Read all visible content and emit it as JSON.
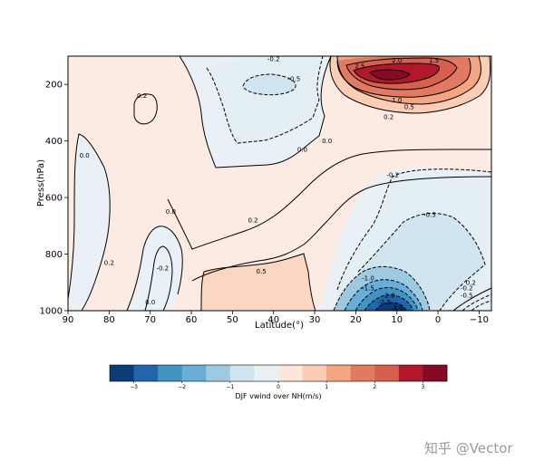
{
  "chart_data": {
    "type": "contour",
    "xlabel": "Latitude(°)",
    "ylabel": "Press(hPa)",
    "x_ticks": [
      "90",
      "80",
      "70",
      "60",
      "50",
      "40",
      "30",
      "20",
      "10",
      "0",
      "−10"
    ],
    "x_tick_values": [
      90,
      80,
      70,
      60,
      50,
      40,
      30,
      20,
      10,
      0,
      -10
    ],
    "y_ticks": [
      "200",
      "400",
      "600",
      "800",
      "1000"
    ],
    "y_tick_values": [
      200,
      400,
      600,
      800,
      1000
    ],
    "xlim": [
      90,
      -13
    ],
    "ylim": [
      1000,
      100
    ],
    "colorbar": {
      "label": "DJF vwind over NH(m/s)",
      "range": [
        -3.5,
        3.5
      ],
      "ticks": [
        "−3",
        "−2",
        "−1",
        "0",
        "1",
        "2",
        "3"
      ],
      "tick_values": [
        -3,
        -2,
        -1,
        0,
        1,
        2,
        3
      ],
      "colors": [
        "#0b3c77",
        "#2166ac",
        "#4393c3",
        "#6aadd6",
        "#9ecae1",
        "#d1e5f0",
        "#e9f1f6",
        "#fbe6dc",
        "#fbcdb4",
        "#f4a582",
        "#e27a61",
        "#d6604d",
        "#b2182b",
        "#850a27"
      ]
    },
    "contour_labels": [
      {
        "text": "-0.2",
        "lat": 40,
        "p": 110
      },
      {
        "text": "-0.5",
        "lat": 35,
        "p": 180
      },
      {
        "text": "0.2",
        "lat": 72,
        "p": 240
      },
      {
        "text": "2.0",
        "lat": 10,
        "p": 115
      },
      {
        "text": "1.5",
        "lat": 1,
        "p": 115
      },
      {
        "text": "2.5",
        "lat": 19,
        "p": 135
      },
      {
        "text": "1.0",
        "lat": 10,
        "p": 255
      },
      {
        "text": "0.5",
        "lat": 7,
        "p": 280
      },
      {
        "text": "0.2",
        "lat": 12,
        "p": 315
      },
      {
        "text": "0.0",
        "lat": 86,
        "p": 450
      },
      {
        "text": "0.0",
        "lat": 33,
        "p": 430
      },
      {
        "text": "0.0",
        "lat": 27,
        "p": 400
      },
      {
        "text": "-0.2",
        "lat": 11,
        "p": 520
      },
      {
        "text": "-0.5",
        "lat": 2,
        "p": 660
      },
      {
        "text": "0.0",
        "lat": 65,
        "p": 650
      },
      {
        "text": "0.2",
        "lat": 45,
        "p": 680
      },
      {
        "text": "0.2",
        "lat": 80,
        "p": 830
      },
      {
        "text": "-0.2",
        "lat": 67,
        "p": 850
      },
      {
        "text": "0.5",
        "lat": 43,
        "p": 860
      },
      {
        "text": "0.0",
        "lat": 70,
        "p": 970
      },
      {
        "text": "-1.0",
        "lat": 17,
        "p": 885
      },
      {
        "text": "-1.5",
        "lat": 17,
        "p": 920
      },
      {
        "text": "-2.0",
        "lat": 12,
        "p": 945
      },
      {
        "text": "-2.5",
        "lat": 13,
        "p": 970
      },
      {
        "text": "-3.0",
        "lat": 10,
        "p": 990
      },
      {
        "text": "-0.2",
        "lat": -7,
        "p": 920
      },
      {
        "text": "-0.5",
        "lat": -7,
        "p": 945
      },
      {
        "text": "0.2",
        "lat": -8,
        "p": 900
      }
    ]
  },
  "watermark": "知乎 @Vector"
}
